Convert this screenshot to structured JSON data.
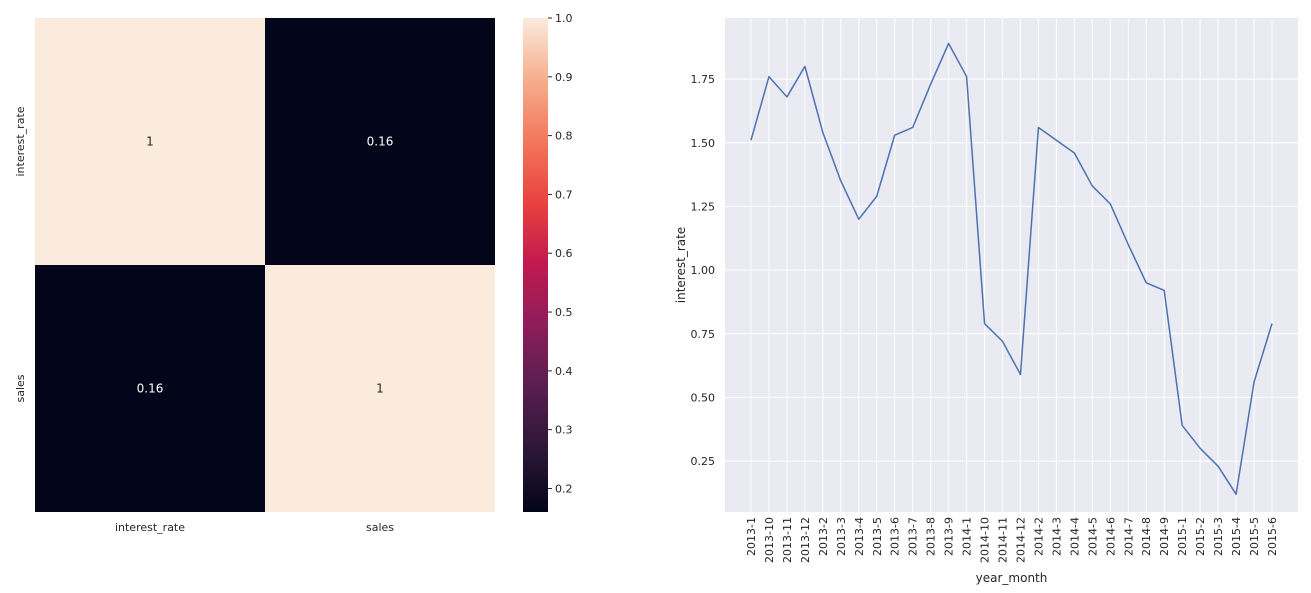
{
  "chart_data": [
    {
      "type": "heatmap",
      "row_labels": [
        "interest_rate",
        "sales"
      ],
      "col_labels": [
        "interest_rate",
        "sales"
      ],
      "values": [
        [
          1,
          0.16
        ],
        [
          0.16,
          1
        ]
      ],
      "cell_text": [
        [
          "1",
          "0.16"
        ],
        [
          "0.16",
          "1"
        ]
      ],
      "colormap": "rocket",
      "colorbar": {
        "range": [
          0.16,
          1.0
        ],
        "ticks": [
          0.2,
          0.3,
          0.4,
          0.5,
          0.6,
          0.7,
          0.8,
          0.9,
          1.0
        ],
        "tick_labels": [
          "0.2",
          "0.3",
          "0.4",
          "0.5",
          "0.6",
          "0.7",
          "0.8",
          "0.9",
          "1.0"
        ]
      }
    },
    {
      "type": "line",
      "xlabel": "year_month",
      "ylabel": "interest_rate",
      "x": [
        "2013-1",
        "2013-10",
        "2013-11",
        "2013-12",
        "2013-2",
        "2013-3",
        "2013-4",
        "2013-5",
        "2013-6",
        "2013-7",
        "2013-8",
        "2013-9",
        "2014-1",
        "2014-10",
        "2014-11",
        "2014-12",
        "2014-2",
        "2014-3",
        "2014-4",
        "2014-5",
        "2014-6",
        "2014-7",
        "2014-8",
        "2014-9",
        "2015-1",
        "2015-2",
        "2015-3",
        "2015-4",
        "2015-5",
        "2015-6"
      ],
      "series": [
        {
          "values": [
            1.51,
            1.76,
            1.68,
            1.8,
            1.54,
            1.35,
            1.2,
            1.29,
            1.53,
            1.56,
            1.73,
            1.89,
            1.76,
            0.79,
            0.72,
            0.59,
            1.56,
            1.51,
            1.46,
            1.33,
            1.26,
            1.1,
            0.95,
            0.92,
            0.39,
            0.3,
            0.23,
            0.12,
            0.56,
            0.79
          ],
          "color": "#4c72b0"
        }
      ],
      "ylim": [
        0.05,
        1.99
      ],
      "yticks": [
        0.25,
        0.5,
        0.75,
        1.0,
        1.25,
        1.5,
        1.75
      ],
      "ytick_labels": [
        "0.25",
        "0.50",
        "0.75",
        "1.00",
        "1.25",
        "1.50",
        "1.75"
      ],
      "grid": true,
      "background": "#eaeaf2"
    }
  ]
}
